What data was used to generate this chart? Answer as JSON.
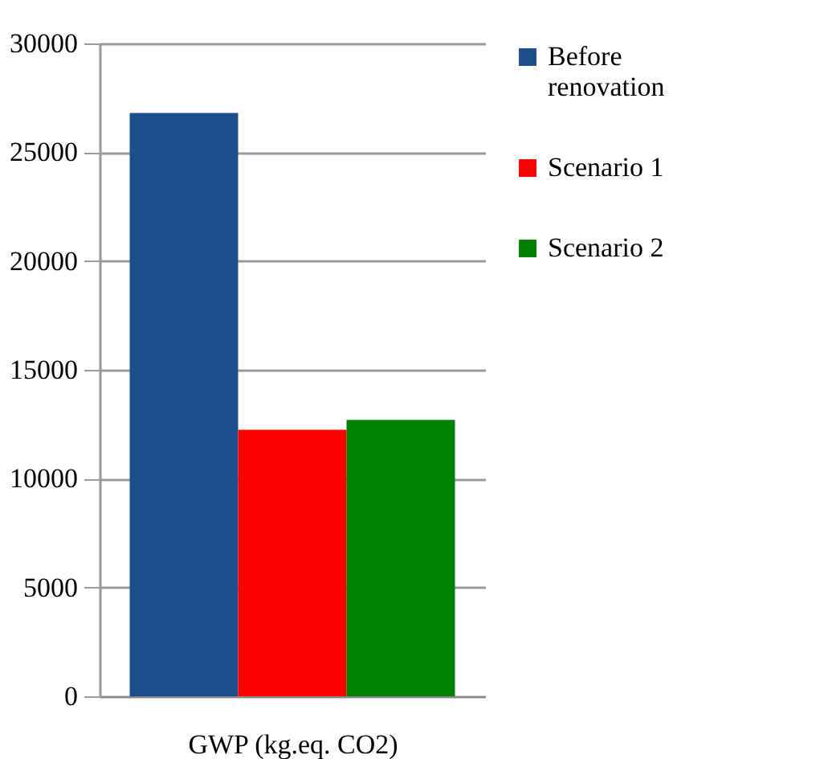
{
  "chart_data": {
    "type": "bar",
    "xlabel": "GWP (kg.eq. CO2)",
    "categories": [
      null
    ],
    "series": [
      {
        "name": "Before renovation",
        "color": "#1f4e8c",
        "values": [
          26800
        ]
      },
      {
        "name": "Scenario 1",
        "color": "#ff0000",
        "values": [
          12250
        ]
      },
      {
        "name": "Scenario 2",
        "color": "#008000",
        "values": [
          12700
        ]
      }
    ],
    "ylim": [
      0,
      30000
    ],
    "yticks": [
      0,
      5000,
      10000,
      15000,
      20000,
      25000,
      30000
    ],
    "grid": "y",
    "legend": "right"
  }
}
